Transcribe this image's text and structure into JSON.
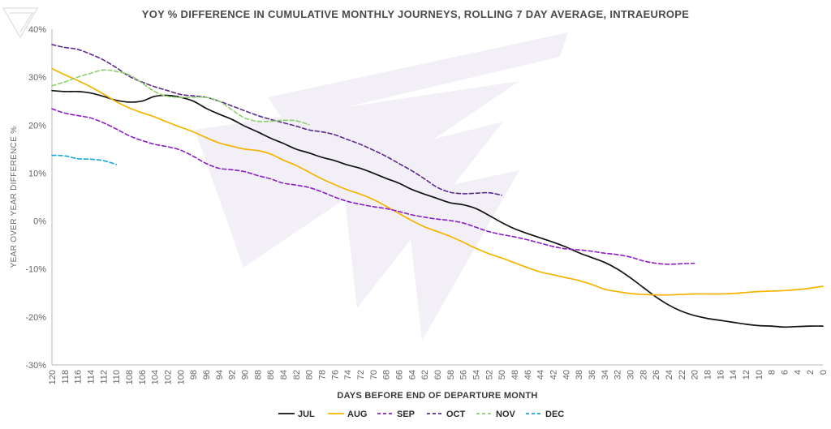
{
  "chart_data": {
    "type": "line",
    "title": "YOY % DIFFERENCE IN CUMULATIVE MONTHLY JOURNEYS, ROLLING 7 DAY AVERAGE, INTRAEUROPE",
    "xlabel": "DAYS BEFORE END OF DEPARTURE MONTH",
    "ylabel": "YEAR OVER YEAR DIFFERENCE %",
    "xlim": [
      120,
      0
    ],
    "x_reversed": true,
    "ylim": [
      -30,
      40
    ],
    "x_ticks": [
      120,
      118,
      116,
      114,
      112,
      110,
      108,
      106,
      104,
      102,
      100,
      98,
      96,
      94,
      92,
      90,
      88,
      86,
      84,
      82,
      80,
      78,
      76,
      74,
      72,
      70,
      68,
      66,
      64,
      62,
      60,
      58,
      56,
      54,
      52,
      50,
      48,
      46,
      44,
      42,
      40,
      38,
      36,
      34,
      32,
      30,
      28,
      26,
      24,
      22,
      20,
      18,
      16,
      14,
      12,
      10,
      8,
      6,
      4,
      2,
      0
    ],
    "y_ticks": [
      {
        "value": -30,
        "label": "-30%"
      },
      {
        "value": -20,
        "label": "-20%"
      },
      {
        "value": -10,
        "label": "-10%"
      },
      {
        "value": 0,
        "label": "0%"
      },
      {
        "value": 10,
        "label": "10%"
      },
      {
        "value": 20,
        "label": "20%"
      },
      {
        "value": 30,
        "label": "30%"
      },
      {
        "value": 40,
        "label": "40%"
      }
    ],
    "grid": false,
    "legend_position": "bottom",
    "series": [
      {
        "name": "JUL",
        "color": "#111111",
        "dash": "solid",
        "x": [
          120,
          118,
          116,
          114,
          112,
          110,
          108,
          106,
          104,
          102,
          100,
          98,
          96,
          94,
          92,
          90,
          88,
          86,
          84,
          82,
          80,
          78,
          76,
          74,
          72,
          70,
          68,
          66,
          64,
          62,
          60,
          58,
          56,
          54,
          52,
          50,
          48,
          46,
          44,
          42,
          40,
          38,
          36,
          34,
          32,
          30,
          28,
          26,
          24,
          22,
          20,
          18,
          16,
          14,
          12,
          10,
          8,
          6,
          4,
          2,
          0
        ],
        "y": [
          27.2,
          27.0,
          27.0,
          26.7,
          26.0,
          25.2,
          24.8,
          25.0,
          26.0,
          26.2,
          25.8,
          25.0,
          23.5,
          22.3,
          21.2,
          19.8,
          18.6,
          17.3,
          16.2,
          15.0,
          14.2,
          13.3,
          12.6,
          11.7,
          11.0,
          10.0,
          8.9,
          7.9,
          6.6,
          5.6,
          4.7,
          3.8,
          3.4,
          2.6,
          1.2,
          -0.3,
          -1.6,
          -2.6,
          -3.5,
          -4.4,
          -5.4,
          -6.6,
          -7.6,
          -8.6,
          -10.0,
          -11.8,
          -13.8,
          -15.8,
          -17.5,
          -18.8,
          -19.7,
          -20.3,
          -20.7,
          -21.1,
          -21.5,
          -21.8,
          -21.9,
          -22.1,
          -22.0,
          -21.9,
          -21.9
        ]
      },
      {
        "name": "AUG",
        "color": "#f5b400",
        "dash": "solid",
        "x": [
          120,
          118,
          116,
          114,
          112,
          110,
          108,
          106,
          104,
          102,
          100,
          98,
          96,
          94,
          92,
          90,
          88,
          86,
          84,
          82,
          80,
          78,
          76,
          74,
          72,
          70,
          68,
          66,
          64,
          62,
          60,
          58,
          56,
          54,
          52,
          50,
          48,
          46,
          44,
          42,
          40,
          38,
          36,
          34,
          32,
          30,
          28,
          26,
          24,
          22,
          20,
          18,
          16,
          14,
          12,
          10,
          8,
          6,
          4,
          2,
          0
        ],
        "y": [
          31.8,
          30.5,
          29.3,
          28.0,
          26.5,
          24.9,
          23.6,
          22.6,
          21.7,
          20.6,
          19.6,
          18.6,
          17.4,
          16.3,
          15.6,
          15.0,
          14.7,
          14.0,
          12.7,
          11.6,
          10.2,
          8.8,
          7.6,
          6.5,
          5.6,
          4.5,
          3.1,
          1.6,
          0.1,
          -1.2,
          -2.2,
          -3.2,
          -4.4,
          -5.7,
          -6.8,
          -7.7,
          -8.7,
          -9.7,
          -10.6,
          -11.2,
          -11.8,
          -12.4,
          -13.2,
          -14.2,
          -14.7,
          -15.1,
          -15.3,
          -15.4,
          -15.4,
          -15.3,
          -15.2,
          -15.2,
          -15.2,
          -15.1,
          -14.9,
          -14.7,
          -14.6,
          -14.5,
          -14.3,
          -14.0,
          -13.6
        ]
      },
      {
        "name": "SEP",
        "color": "#8a1fc8",
        "dash": "dashed",
        "x": [
          120,
          118,
          116,
          114,
          112,
          110,
          108,
          106,
          104,
          102,
          100,
          98,
          96,
          94,
          92,
          90,
          88,
          86,
          84,
          82,
          80,
          78,
          76,
          74,
          72,
          70,
          68,
          66,
          64,
          62,
          60,
          58,
          56,
          54,
          52,
          50,
          48,
          46,
          44,
          42,
          40,
          38,
          36,
          34,
          32,
          30,
          28,
          26,
          24,
          22,
          20
        ],
        "y": [
          23.4,
          22.5,
          22.0,
          21.5,
          20.5,
          19.2,
          17.8,
          16.8,
          16.0,
          15.5,
          14.8,
          13.5,
          12.0,
          11.0,
          10.7,
          10.3,
          9.5,
          8.8,
          7.9,
          7.5,
          7.0,
          6.1,
          5.0,
          4.1,
          3.5,
          3.0,
          2.6,
          2.0,
          1.3,
          0.8,
          0.4,
          0.1,
          -0.4,
          -1.3,
          -2.2,
          -2.8,
          -3.3,
          -3.9,
          -4.6,
          -5.3,
          -5.8,
          -6.0,
          -6.3,
          -6.7,
          -7.0,
          -7.5,
          -8.3,
          -8.8,
          -9.0,
          -8.9,
          -8.8
        ]
      },
      {
        "name": "OCT",
        "color": "#5c2a8c",
        "dash": "dashed",
        "x": [
          120,
          118,
          116,
          114,
          112,
          110,
          108,
          106,
          104,
          102,
          100,
          98,
          96,
          94,
          92,
          90,
          88,
          86,
          84,
          82,
          80,
          78,
          76,
          74,
          72,
          70,
          68,
          66,
          64,
          62,
          60,
          58,
          56,
          54,
          52,
          50
        ],
        "y": [
          36.8,
          36.2,
          35.8,
          34.8,
          33.6,
          32.0,
          30.2,
          29.0,
          28.0,
          27.2,
          26.4,
          26.1,
          25.8,
          25.0,
          24.0,
          23.0,
          22.0,
          21.2,
          20.5,
          19.8,
          19.0,
          18.6,
          18.0,
          17.0,
          16.0,
          14.8,
          13.5,
          12.0,
          10.5,
          8.8,
          7.0,
          6.0,
          5.7,
          5.8,
          5.9,
          5.4
        ]
      },
      {
        "name": "NOV",
        "color": "#8fd070",
        "dash": "dashed",
        "x": [
          120,
          118,
          116,
          114,
          112,
          110,
          108,
          106,
          104,
          102,
          100,
          98,
          96,
          94,
          92,
          90,
          88,
          86,
          84,
          82,
          80
        ],
        "y": [
          28.2,
          29.0,
          30.0,
          30.8,
          31.5,
          31.2,
          30.5,
          28.8,
          27.0,
          26.0,
          25.8,
          25.8,
          25.8,
          25.0,
          23.2,
          21.5,
          20.8,
          20.8,
          21.0,
          20.9,
          20.1
        ]
      },
      {
        "name": "DEC",
        "color": "#1aa6d9",
        "dash": "dashed",
        "x": [
          120,
          118,
          116,
          114,
          112,
          110
        ],
        "y": [
          13.7,
          13.6,
          13.0,
          12.9,
          12.6,
          11.8
        ]
      }
    ]
  }
}
